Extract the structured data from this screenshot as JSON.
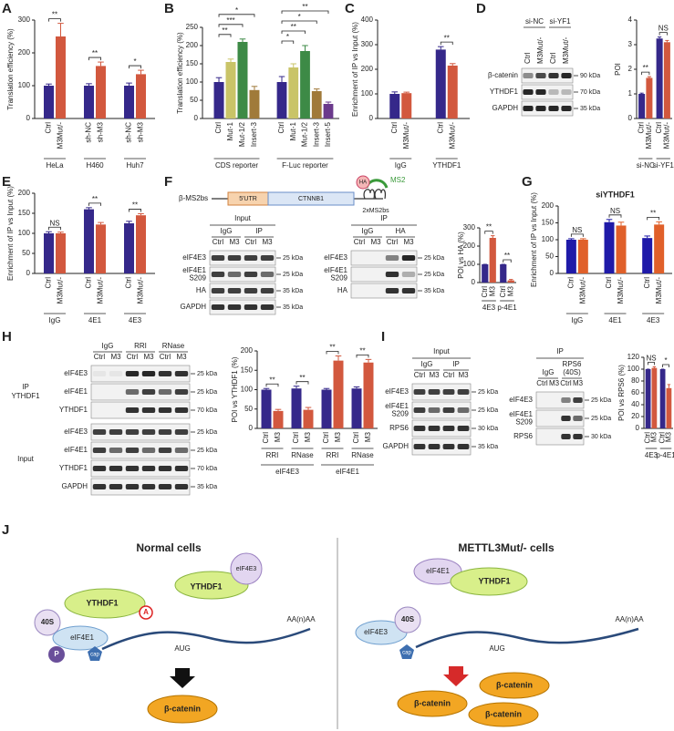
{
  "panel_labels": [
    "A",
    "B",
    "C",
    "D",
    "E",
    "F",
    "G",
    "H",
    "I",
    "J"
  ],
  "chart_data": [
    {
      "type": "bar",
      "ylabel": "Translation efficiency (%)",
      "ylim": [
        0,
        300
      ],
      "yticks": [
        0,
        100,
        200,
        300
      ],
      "colors": [
        "#35288a",
        "#d2583e"
      ],
      "groups": [
        {
          "name": "HeLa",
          "categories": [
            "Ctrl",
            "M3Mut/-"
          ],
          "values": [
            100,
            250
          ],
          "errors": [
            5,
            40
          ],
          "significance": "**"
        },
        {
          "name": "H460",
          "categories": [
            "sh-NC",
            "sh-M3"
          ],
          "values": [
            100,
            160
          ],
          "errors": [
            6,
            12
          ],
          "significance": "**"
        },
        {
          "name": "Huh7",
          "categories": [
            "sh-NC",
            "sh-M3"
          ],
          "values": [
            100,
            135
          ],
          "errors": [
            8,
            12
          ],
          "significance": "*"
        }
      ]
    },
    {
      "type": "bar",
      "ylabel": "Translation efficiency (%)",
      "ylim": [
        0,
        250
      ],
      "yticks": [
        0,
        50,
        100,
        150,
        200,
        250
      ],
      "colors": [
        "#35288a",
        "#c9c468",
        "#3d8a46",
        "#a07a3a",
        "#6b3a8c"
      ],
      "groups": [
        {
          "name": "CDS reporter",
          "categories": [
            "Ctrl",
            "Mut-1",
            "Mut-1/2",
            "Insert-3"
          ],
          "values": [
            100,
            155,
            210,
            78
          ],
          "errors": [
            12,
            8,
            8,
            10
          ],
          "significance": [
            "**",
            "***",
            "*"
          ]
        },
        {
          "name": "F-Luc reporter",
          "categories": [
            "Ctrl",
            "Mut-1",
            "Mut-1/2",
            "Insert-3",
            "Insert-5"
          ],
          "values": [
            100,
            140,
            185,
            75,
            40
          ],
          "errors": [
            15,
            10,
            15,
            6,
            5
          ],
          "significance": [
            "*",
            "**",
            "*",
            "**"
          ]
        }
      ]
    },
    {
      "type": "bar",
      "ylabel": "Enrichment of IP vs Input (%)",
      "ylim": [
        0,
        400
      ],
      "yticks": [
        0,
        100,
        200,
        300,
        400
      ],
      "colors": [
        "#35288a",
        "#d2583e"
      ],
      "groups": [
        {
          "name": "IgG",
          "categories": [
            "Ctrl",
            "M3Mut/-"
          ],
          "values": [
            100,
            103
          ],
          "errors": [
            8,
            4
          ]
        },
        {
          "name": "YTHDF1",
          "categories": [
            "Ctrl",
            "M3Mut/-"
          ],
          "values": [
            280,
            215
          ],
          "errors": [
            12,
            8
          ],
          "significance": "**"
        }
      ]
    },
    {
      "type": "bar",
      "ylabel": "POI",
      "ylim": [
        0,
        4
      ],
      "yticks": [
        0,
        1,
        2,
        3,
        4
      ],
      "colors": [
        "#35288a",
        "#d2583e"
      ],
      "groups": [
        {
          "name": "si-NC",
          "categories": [
            "Ctrl",
            "M3Mut/-"
          ],
          "values": [
            1.0,
            1.65
          ],
          "errors": [
            0.03,
            0.05
          ],
          "significance": "**"
        },
        {
          "name": "si-YF1",
          "categories": [
            "Ctrl",
            "M3Mut/-"
          ],
          "values": [
            3.25,
            3.1
          ],
          "errors": [
            0.06,
            0.07
          ],
          "significance": "NS"
        }
      ]
    },
    {
      "type": "bar",
      "ylabel": "Enrichment of IP vs Input (%)",
      "ylim": [
        0,
        200
      ],
      "yticks": [
        0,
        50,
        100,
        150,
        200
      ],
      "colors": [
        "#35288a",
        "#d2583e"
      ],
      "groups": [
        {
          "name": "IgG",
          "categories": [
            "Ctrl",
            "M3Mut/-"
          ],
          "values": [
            100,
            100
          ],
          "errors": [
            4,
            3
          ],
          "significance": "NS"
        },
        {
          "name": "4E1",
          "categories": [
            "Ctrl",
            "M3Mut/-"
          ],
          "values": [
            160,
            122
          ],
          "errors": [
            4,
            5
          ],
          "significance": "**"
        },
        {
          "name": "4E3",
          "categories": [
            "Ctrl",
            "M3Mut/-"
          ],
          "values": [
            125,
            145
          ],
          "errors": [
            5,
            4
          ],
          "significance": "**"
        }
      ]
    },
    {
      "type": "bar",
      "ylabel": "POI vs HA (%)",
      "ylim": [
        0,
        300
      ],
      "yticks": [
        0,
        100,
        200,
        300
      ],
      "colors": [
        "#35288a",
        "#d2583e"
      ],
      "groups": [
        {
          "name": "4E3",
          "categories": [
            "Ctrl",
            "M3"
          ],
          "values": [
            100,
            245
          ],
          "errors": [
            0,
            12
          ],
          "significance": "**"
        },
        {
          "name": "p-4E1",
          "categories": [
            "Ctrl",
            "M3"
          ],
          "values": [
            100,
            12
          ],
          "errors": [
            0,
            5
          ],
          "significance": "**"
        }
      ]
    },
    {
      "type": "bar",
      "title": "siYTHDF1",
      "ylabel": "Enrichment of IP vs Input (%)",
      "ylim": [
        0,
        200
      ],
      "yticks": [
        0,
        50,
        100,
        150,
        200
      ],
      "colors": [
        "#1f1aa8",
        "#e0602a"
      ],
      "groups": [
        {
          "name": "IgG",
          "categories": [
            "Ctrl",
            "M3Mut/-"
          ],
          "values": [
            100,
            100
          ],
          "errors": [
            3,
            3
          ],
          "significance": "NS"
        },
        {
          "name": "4E1",
          "categories": [
            "Ctrl",
            "M3Mut/-"
          ],
          "values": [
            152,
            142
          ],
          "errors": [
            8,
            10
          ],
          "significance": "NS"
        },
        {
          "name": "4E3",
          "categories": [
            "Ctrl",
            "M3Mut/-"
          ],
          "values": [
            105,
            145
          ],
          "errors": [
            6,
            8
          ],
          "significance": "**"
        }
      ]
    },
    {
      "type": "bar",
      "ylabel": "POI vs YTHDF1 (%)",
      "ylim": [
        0,
        200
      ],
      "yticks": [
        0,
        50,
        100,
        150,
        200
      ],
      "colors": [
        "#35288a",
        "#d2583e"
      ],
      "supergroups": [
        "eIF4E3",
        "eIF4E1"
      ],
      "groups": [
        {
          "name": "RRI",
          "categories": [
            "Ctrl",
            "M3"
          ],
          "values": [
            100,
            45
          ],
          "errors": [
            3,
            4
          ],
          "significance": "**"
        },
        {
          "name": "RNase",
          "categories": [
            "Ctrl",
            "M3"
          ],
          "values": [
            103,
            48
          ],
          "errors": [
            6,
            6
          ],
          "significance": "**"
        },
        {
          "name": "RRI",
          "categories": [
            "Ctrl",
            "M3"
          ],
          "values": [
            100,
            175
          ],
          "errors": [
            3,
            12
          ],
          "significance": "**"
        },
        {
          "name": "RNase",
          "categories": [
            "Ctrl",
            "M3"
          ],
          "values": [
            103,
            170
          ],
          "errors": [
            4,
            8
          ],
          "significance": "**"
        }
      ]
    },
    {
      "type": "bar",
      "ylabel": "POI vs RPS6 (%)",
      "ylim": [
        0,
        120
      ],
      "yticks": [
        0,
        20,
        40,
        60,
        80,
        100,
        120
      ],
      "colors": [
        "#35288a",
        "#d2583e"
      ],
      "groups": [
        {
          "name": "4E3",
          "categories": [
            "Ctrl",
            "M3"
          ],
          "values": [
            100,
            102
          ],
          "errors": [
            0,
            2
          ],
          "significance": "NS"
        },
        {
          "name": "p-4E1",
          "categories": [
            "Ctrl",
            "M3"
          ],
          "values": [
            100,
            68
          ],
          "errors": [
            0,
            6
          ],
          "significance": "*"
        }
      ]
    }
  ],
  "blots": {
    "D": {
      "groups": [
        {
          "label": "si-NC",
          "lanes": [
            "Ctrl",
            "M3Mut/-"
          ]
        },
        {
          "label": "si-YF1",
          "lanes": [
            "Ctrl",
            "M3Mut/-"
          ]
        }
      ],
      "sections": [
        {
          "rows": [
            {
              "label": [
                "β-catenin"
              ],
              "kda": "90 kDa"
            },
            {
              "label": [
                "YTHDF1"
              ],
              "kda": "70 kDa"
            },
            {
              "label": [
                "GAPDH"
              ],
              "kda": "35 kDa"
            }
          ]
        }
      ]
    },
    "F_input": {
      "title": "Input",
      "groups": [
        {
          "label": "IgG",
          "lanes": [
            "Ctrl",
            "M3"
          ]
        },
        {
          "label": "IP",
          "lanes": [
            "Ctrl",
            "M3"
          ]
        }
      ],
      "sections": [
        {
          "rows": [
            {
              "label": [
                "eIF4E3"
              ],
              "kda": "25 kDa"
            },
            {
              "label": [
                "eIF4E1",
                "S209"
              ],
              "kda": "25 kDa"
            },
            {
              "label": [
                "HA"
              ],
              "kda": "35 kDa"
            },
            {
              "label": [
                "GAPDH"
              ],
              "kda": "35 kDa"
            }
          ]
        }
      ]
    },
    "F_ip": {
      "title": "IP",
      "groups": [
        {
          "label": "IgG",
          "lanes": [
            "Ctrl",
            "M3"
          ]
        },
        {
          "label": "HA",
          "lanes": [
            "Ctrl",
            "M3"
          ]
        }
      ],
      "sections": [
        {
          "rows": [
            {
              "label": [
                "eIF4E3"
              ],
              "kda": "25 kDa"
            },
            {
              "label": [
                "eIF4E1",
                "S209"
              ],
              "kda": "25 kDa"
            },
            {
              "label": [
                "HA"
              ],
              "kda": "35 kDa"
            }
          ]
        }
      ]
    },
    "H": {
      "groups": [
        {
          "label": "IgG",
          "lanes": [
            "Ctrl",
            "M3"
          ]
        },
        {
          "label": "RRI",
          "lanes": [
            "Ctrl",
            "M3"
          ]
        },
        {
          "label": "RNase",
          "lanes": [
            "Ctrl",
            "M3"
          ]
        }
      ],
      "sections": [
        {
          "label": [
            "IP",
            "YTHDF1"
          ],
          "rows": [
            {
              "label": [
                "eIF4E3"
              ],
              "kda": "25 kDa"
            },
            {
              "label": [
                "eIF4E1"
              ],
              "kda": "25 kDa"
            },
            {
              "label": [
                "YTHDF1"
              ],
              "kda": "70 kDa"
            }
          ]
        },
        {
          "label": [
            "Input"
          ],
          "rows": [
            {
              "label": [
                "eIF4E3"
              ],
              "kda": "25 kDa"
            },
            {
              "label": [
                "eIF4E1"
              ],
              "kda": "25 kDa"
            },
            {
              "label": [
                "YTHDF1"
              ],
              "kda": "70 kDa"
            },
            {
              "label": [
                "GAPDH"
              ],
              "kda": "35 kDa"
            }
          ]
        }
      ]
    },
    "I_input": {
      "title": "Input",
      "groups": [
        {
          "label": "IgG",
          "lanes": [
            "Ctrl",
            "M3"
          ]
        },
        {
          "label": "IP",
          "lanes": [
            "Ctrl",
            "M3"
          ]
        }
      ],
      "sections": [
        {
          "rows": [
            {
              "label": [
                "eIF4E3"
              ],
              "kda": "25 kDa"
            },
            {
              "label": [
                "eIF4E1",
                "S209"
              ],
              "kda": "25 kDa"
            },
            {
              "label": [
                "RPS6"
              ],
              "kda": "30 kDa"
            },
            {
              "label": [
                "GAPDH"
              ],
              "kda": "35 kDa"
            }
          ]
        }
      ]
    },
    "I_ip": {
      "title": "IP",
      "groups": [
        {
          "label": "IgG",
          "lanes": [
            "Ctrl",
            "M3"
          ]
        },
        {
          "label": [
            "RPS6",
            "(40S)"
          ],
          "lanes": [
            "Ctrl",
            "M3"
          ]
        }
      ],
      "sections": [
        {
          "rows": [
            {
              "label": [
                "eIF4E3"
              ],
              "kda": "25 kDa"
            },
            {
              "label": [
                "eIF4E1",
                "S209"
              ],
              "kda": "25 kDa"
            },
            {
              "label": [
                "RPS6"
              ],
              "kda": "30 kDa"
            }
          ]
        }
      ]
    }
  },
  "construct": {
    "name": "β-MS2bs",
    "utr": "5'UTR",
    "cds": "CTNNB1",
    "sites": "2xMS2bs",
    "tag": "HA",
    "binder": "MS2"
  },
  "model": {
    "normal": {
      "title": "Normal cells",
      "ythdf1_bound": "YTHDF1",
      "m6a": "A",
      "ythdf1_free": "YTHDF1",
      "eif4e3": "eIF4E3",
      "ribosome": "40S",
      "eif4e1": "eIF4E1",
      "phospho": "P",
      "cap": "cap",
      "start": "AUG",
      "tail": "AA(n)AA",
      "product": "β-catenin"
    },
    "mettl3": {
      "title": "METTL3Mut/- cells",
      "eif4e1": "eIF4E1",
      "ythdf1": "YTHDF1",
      "eif4e3": "eIF4E3",
      "ribosome": "40S",
      "cap": "cap",
      "start": "AUG",
      "tail": "AA(n)AA",
      "products": [
        "β-catenin",
        "β-catenin",
        "β-catenin"
      ]
    }
  }
}
